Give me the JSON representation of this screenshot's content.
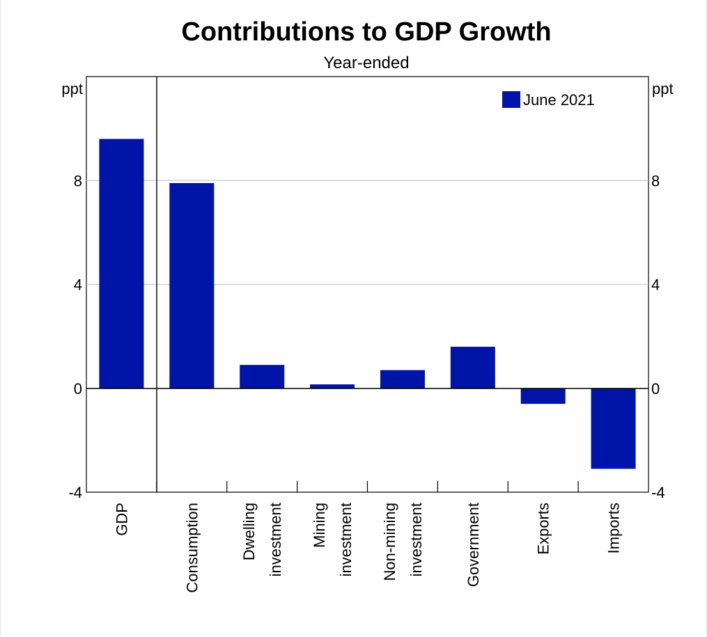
{
  "chart_data": {
    "type": "bar",
    "title": "Contributions to GDP Growth",
    "subtitle": "Year-ended",
    "y_unit_left": "ppt",
    "y_unit_right": "ppt",
    "ylim": [
      -4,
      12
    ],
    "yticks": [
      -4,
      0,
      4,
      8
    ],
    "grid": true,
    "legend_position": "top-right",
    "categories": [
      [
        "GDP"
      ],
      [
        "Consumption"
      ],
      [
        "Dwelling",
        "investment"
      ],
      [
        "Mining",
        "investment"
      ],
      [
        "Non-mining",
        "investment"
      ],
      [
        "Government"
      ],
      [
        "Exports"
      ],
      [
        "Imports"
      ]
    ],
    "series": [
      {
        "name": "June 2021",
        "color": "#0014a8",
        "values": [
          9.6,
          7.9,
          0.9,
          0.15,
          0.7,
          1.6,
          -0.6,
          -3.1
        ]
      }
    ]
  }
}
